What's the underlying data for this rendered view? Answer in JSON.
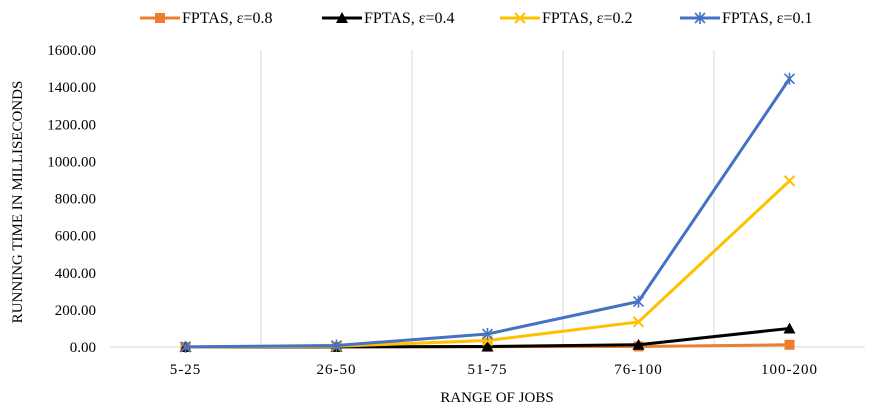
{
  "chart_data": {
    "type": "line",
    "title": "",
    "xlabel": "RANGE OF JOBS",
    "ylabel": "RUNNING TIME IN MILLISECONDS",
    "categories": [
      "5-25",
      "26-50",
      "51-75",
      "76-100",
      "100-200"
    ],
    "ylim": [
      0,
      1600
    ],
    "yticks": [
      "0.00",
      "200.00",
      "400.00",
      "600.00",
      "800.00",
      "1000.00",
      "1200.00",
      "1400.00",
      "1600.00"
    ],
    "grid": "vertical",
    "legend_position": "top",
    "series": [
      {
        "name": "FPTAS, ε=0.8",
        "color": "#ED7D31",
        "marker": "square",
        "values": [
          0.1,
          0.5,
          1.5,
          3,
          12
        ]
      },
      {
        "name": "FPTAS, ε=0.4",
        "color": "#000000",
        "marker": "triangle",
        "values": [
          0.2,
          1,
          3,
          12,
          100
        ]
      },
      {
        "name": "FPTAS, ε=0.2",
        "color": "#FFC000",
        "marker": "x",
        "values": [
          0.3,
          4,
          35,
          135,
          895
        ]
      },
      {
        "name": "FPTAS, ε=0.1",
        "color": "#4472C4",
        "marker": "star",
        "values": [
          0.5,
          8,
          70,
          245,
          1445
        ]
      }
    ]
  }
}
